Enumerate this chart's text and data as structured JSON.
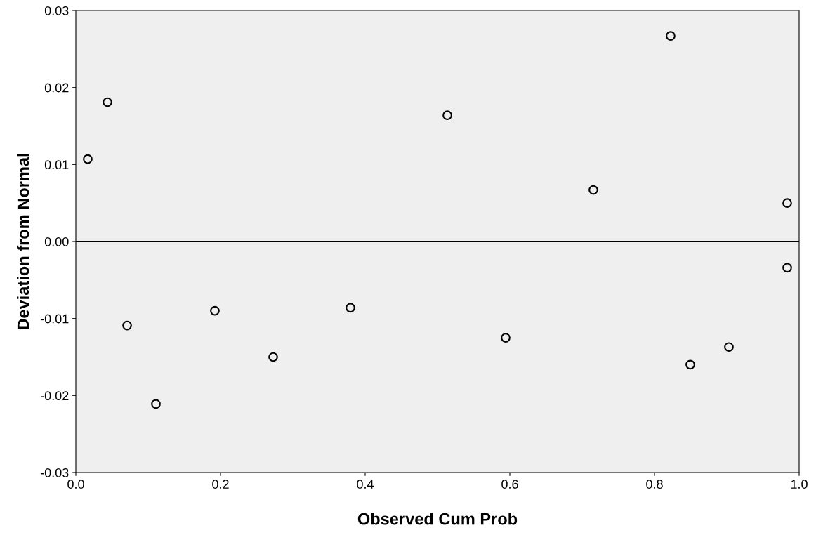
{
  "chart_data": {
    "type": "scatter",
    "xlabel": "Observed Cum Prob",
    "ylabel": "Deviation from Normal",
    "x": [
      0.0165,
      0.0437,
      0.0709,
      0.1107,
      0.1922,
      0.2728,
      0.3796,
      0.5136,
      0.5942,
      0.7155,
      0.8223,
      0.8495,
      0.9029,
      0.9835,
      0.9835
    ],
    "values": [
      0.0107,
      0.0181,
      -0.0109,
      -0.0211,
      -0.009,
      -0.015,
      -0.0086,
      0.0164,
      -0.0125,
      0.0067,
      0.0267,
      -0.016,
      -0.0137,
      0.005,
      -0.0034
    ],
    "color": "#000000",
    "marker": "circle",
    "xlim": [
      0,
      1
    ],
    "ylim": [
      -0.03,
      0.03
    ],
    "xticks": [
      {
        "value": 0,
        "label": "0.0"
      },
      {
        "value": 0.2,
        "label": "0.2"
      },
      {
        "value": 0.4,
        "label": "0.4"
      },
      {
        "value": 0.6,
        "label": "0.6"
      },
      {
        "value": 0.8,
        "label": "0.8"
      },
      {
        "value": 1,
        "label": "1.0"
      }
    ],
    "yticks": [
      {
        "value": -0.03,
        "label": "-0.03"
      },
      {
        "value": -0.02,
        "label": "-0.02"
      },
      {
        "value": -0.01,
        "label": "-0.01"
      },
      {
        "value": 0,
        "label": "0.00"
      },
      {
        "value": 0.01,
        "label": "0.01"
      },
      {
        "value": 0.02,
        "label": "0.02"
      },
      {
        "value": 0.03,
        "label": "0.03"
      }
    ],
    "ref_lines": [
      {
        "axis": "y",
        "value": 0,
        "color": "#000000"
      }
    ],
    "grid": false
  }
}
